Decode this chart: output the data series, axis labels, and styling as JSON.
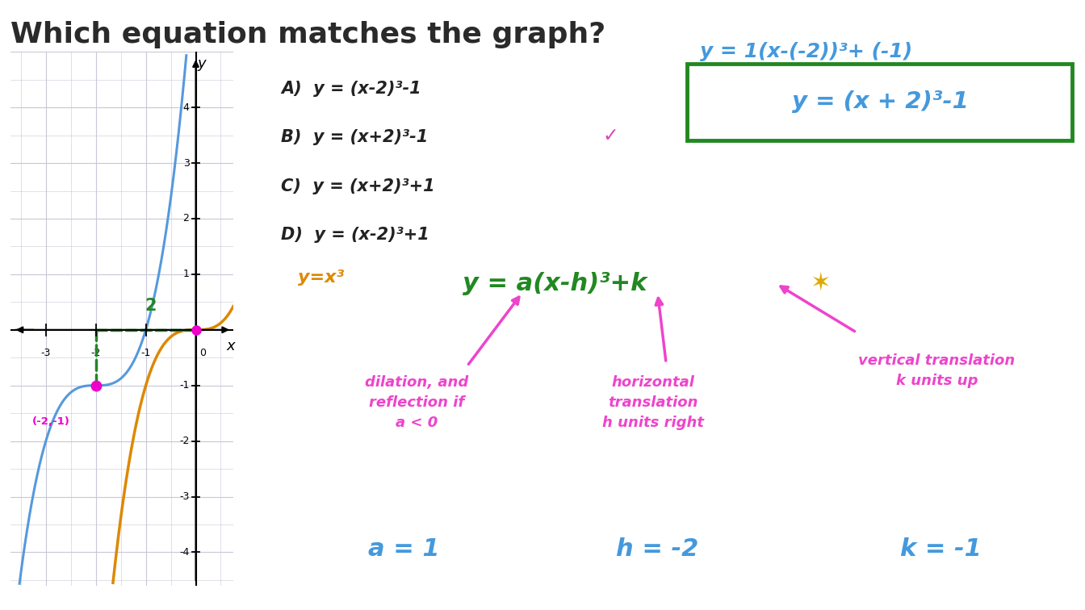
{
  "bg_color": "#ffffff",
  "graph_bg_color": "#e8e8f0",
  "grid_color": "#c8c8d8",
  "title": "Which equation matches the graph?",
  "title_color": "#2a2a2a",
  "title_fontsize": 26,
  "graph_xlim": [
    -3.7,
    0.75
  ],
  "graph_ylim": [
    -4.6,
    5.0
  ],
  "blue_curve_color": "#5599dd",
  "orange_curve_color": "#dd8800",
  "green_dashed_color": "#228822",
  "magenta_color": "#ee00cc",
  "option_color": "#222222",
  "checkmark_color": "#dd44bb",
  "orange_label_color": "#dd8800",
  "blue_text_color": "#4499dd",
  "green_text_color": "#228822",
  "magenta_text_color": "#ee44cc",
  "star_color": "#ddaa00",
  "box_border_color": "#228822"
}
